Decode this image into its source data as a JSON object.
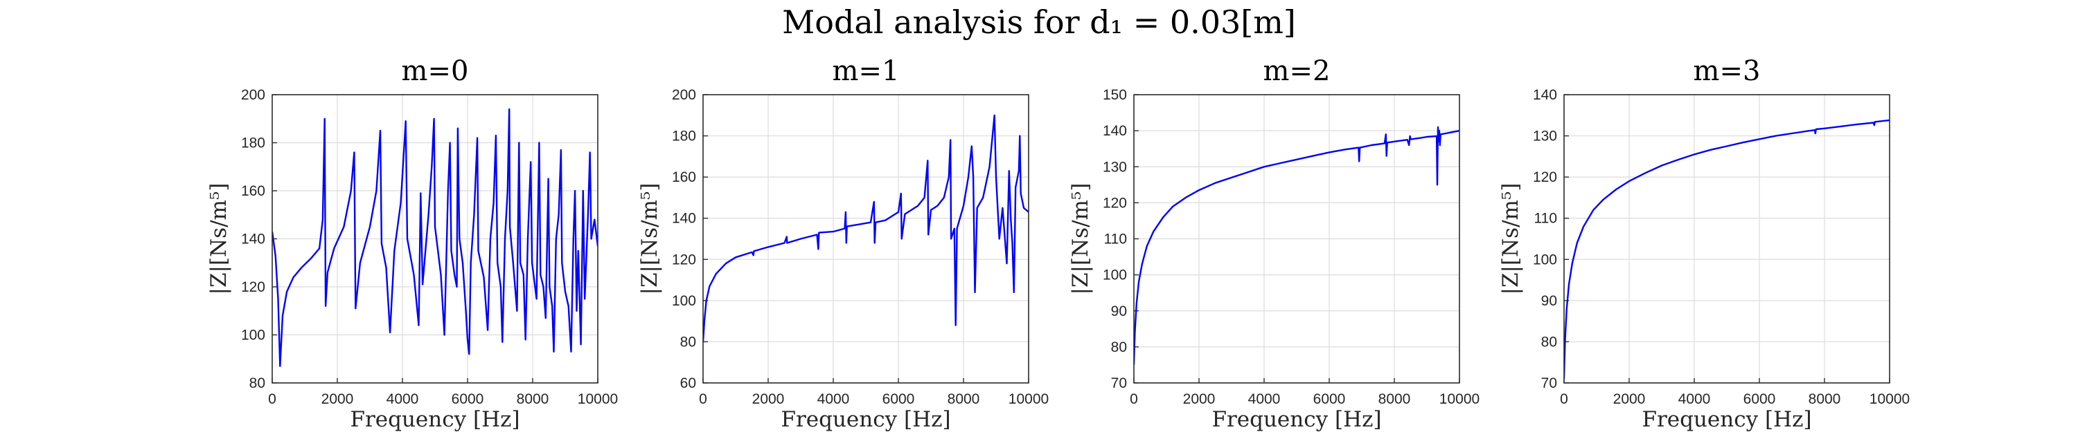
{
  "figure_title": "Modal analysis for d₁ = 0.03[m]",
  "colors": {
    "line": "#0000ff",
    "grid": "#dcdcdc",
    "axes": "#2b2b2b"
  },
  "chart_data": [
    {
      "type": "line",
      "title": "m=0",
      "xlabel": "Frequency [Hz]",
      "ylabel": "|Z|[Ns/m⁵]",
      "xlim": [
        0,
        10000
      ],
      "ylim": [
        80,
        200
      ],
      "xticks": [
        0,
        2000,
        4000,
        6000,
        8000,
        10000
      ],
      "yticks": [
        80,
        100,
        120,
        140,
        160,
        180,
        200
      ],
      "grid": true,
      "series": [
        {
          "values": [
            [
              0,
              143
            ],
            [
              100,
              133
            ],
            [
              180,
              115
            ],
            [
              240,
              87
            ],
            [
              320,
              108
            ],
            [
              450,
              118
            ],
            [
              650,
              124
            ],
            [
              900,
              128
            ],
            [
              1200,
              132
            ],
            [
              1450,
              136
            ],
            [
              1550,
              148
            ],
            [
              1610,
              190
            ],
            [
              1640,
              112
            ],
            [
              1700,
              126
            ],
            [
              1900,
              136
            ],
            [
              2200,
              145
            ],
            [
              2420,
              160
            ],
            [
              2520,
              176
            ],
            [
              2560,
              111
            ],
            [
              2700,
              130
            ],
            [
              3000,
              145
            ],
            [
              3200,
              160
            ],
            [
              3320,
              185
            ],
            [
              3360,
              138
            ],
            [
              3500,
              128
            ],
            [
              3620,
              101
            ],
            [
              3750,
              135
            ],
            [
              3950,
              155
            ],
            [
              4100,
              189
            ],
            [
              4150,
              140
            ],
            [
              4350,
              125
            ],
            [
              4500,
              104
            ],
            [
              4560,
              159
            ],
            [
              4620,
              121
            ],
            [
              4800,
              150
            ],
            [
              4900,
              170
            ],
            [
              4970,
              190
            ],
            [
              5000,
              145
            ],
            [
              5180,
              125
            ],
            [
              5290,
              100
            ],
            [
              5400,
              160
            ],
            [
              5460,
              180
            ],
            [
              5500,
              135
            ],
            [
              5600,
              125
            ],
            [
              5670,
              120
            ],
            [
              5700,
              186
            ],
            [
              5750,
              140
            ],
            [
              5850,
              130
            ],
            [
              5950,
              110
            ],
            [
              6000,
              98
            ],
            [
              6050,
              92
            ],
            [
              6100,
              130
            ],
            [
              6200,
              150
            ],
            [
              6300,
              182
            ],
            [
              6330,
              135
            ],
            [
              6500,
              124
            ],
            [
              6620,
              102
            ],
            [
              6700,
              140
            ],
            [
              6800,
              155
            ],
            [
              6870,
              183
            ],
            [
              6920,
              130
            ],
            [
              7020,
              120
            ],
            [
              7070,
              97
            ],
            [
              7150,
              140
            ],
            [
              7230,
              160
            ],
            [
              7280,
              194
            ],
            [
              7300,
              145
            ],
            [
              7400,
              130
            ],
            [
              7520,
              110
            ],
            [
              7580,
              180
            ],
            [
              7620,
              130
            ],
            [
              7720,
              125
            ],
            [
              7780,
              98
            ],
            [
              7850,
              140
            ],
            [
              7940,
              172
            ],
            [
              7980,
              130
            ],
            [
              8120,
              115
            ],
            [
              8200,
              180
            ],
            [
              8240,
              125
            ],
            [
              8330,
              120
            ],
            [
              8400,
              107
            ],
            [
              8480,
              165
            ],
            [
              8520,
              120
            ],
            [
              8600,
              112
            ],
            [
              8650,
              93
            ],
            [
              8720,
              140
            ],
            [
              8800,
              150
            ],
            [
              8870,
              177
            ],
            [
              8900,
              130
            ],
            [
              9000,
              118
            ],
            [
              9100,
              112
            ],
            [
              9180,
              93
            ],
            [
              9250,
              140
            ],
            [
              9300,
              160
            ],
            [
              9350,
              110
            ],
            [
              9400,
              135
            ],
            [
              9480,
              96
            ],
            [
              9550,
              160
            ],
            [
              9600,
              115
            ],
            [
              9700,
              150
            ],
            [
              9760,
              176
            ],
            [
              9800,
              140
            ],
            [
              9900,
              148
            ],
            [
              10000,
              137
            ]
          ]
        }
      ]
    },
    {
      "type": "line",
      "title": "m=1",
      "xlabel": "Frequency [Hz]",
      "ylabel": "|Z|[Ns/m⁵]",
      "xlim": [
        0,
        10000
      ],
      "ylim": [
        60,
        200
      ],
      "xticks": [
        0,
        2000,
        4000,
        6000,
        8000,
        10000
      ],
      "yticks": [
        60,
        80,
        100,
        120,
        140,
        160,
        180,
        200
      ],
      "grid": true,
      "series": [
        {
          "values": [
            [
              0,
              80
            ],
            [
              40,
              90
            ],
            [
              100,
              100
            ],
            [
              200,
              107
            ],
            [
              400,
              113
            ],
            [
              700,
              118
            ],
            [
              1000,
              121
            ],
            [
              1500,
              123.5
            ],
            [
              1550,
              122
            ],
            [
              1560,
              124
            ],
            [
              2000,
              126
            ],
            [
              2500,
              128
            ],
            [
              2570,
              131
            ],
            [
              2580,
              128
            ],
            [
              3000,
              130
            ],
            [
              3500,
              132
            ],
            [
              3540,
              125
            ],
            [
              3560,
              133
            ],
            [
              4000,
              133.5
            ],
            [
              4350,
              135
            ],
            [
              4380,
              143
            ],
            [
              4400,
              128
            ],
            [
              4420,
              136
            ],
            [
              4800,
              137
            ],
            [
              5150,
              138
            ],
            [
              5250,
              148
            ],
            [
              5270,
              128
            ],
            [
              5300,
              138
            ],
            [
              5600,
              139
            ],
            [
              5800,
              141
            ],
            [
              6000,
              143
            ],
            [
              6080,
              152
            ],
            [
              6100,
              130
            ],
            [
              6200,
              142
            ],
            [
              6400,
              144
            ],
            [
              6600,
              146
            ],
            [
              6800,
              150
            ],
            [
              6900,
              168
            ],
            [
              6920,
              132
            ],
            [
              7000,
              144
            ],
            [
              7200,
              146
            ],
            [
              7400,
              150
            ],
            [
              7550,
              160
            ],
            [
              7600,
              178
            ],
            [
              7620,
              130
            ],
            [
              7720,
              135
            ],
            [
              7760,
              88
            ],
            [
              7800,
              135
            ],
            [
              8000,
              146
            ],
            [
              8150,
              160
            ],
            [
              8250,
              175
            ],
            [
              8300,
              160
            ],
            [
              8350,
              104
            ],
            [
              8420,
              145
            ],
            [
              8600,
              150
            ],
            [
              8800,
              165
            ],
            [
              8950,
              190
            ],
            [
              9000,
              160
            ],
            [
              9100,
              130
            ],
            [
              9200,
              145
            ],
            [
              9330,
              118
            ],
            [
              9400,
              163
            ],
            [
              9450,
              140
            ],
            [
              9500,
              128
            ],
            [
              9550,
              104
            ],
            [
              9600,
              155
            ],
            [
              9700,
              163
            ],
            [
              9730,
              180
            ],
            [
              9760,
              152
            ],
            [
              9850,
              145
            ],
            [
              10000,
              143
            ]
          ]
        }
      ]
    },
    {
      "type": "line",
      "title": "m=2",
      "xlabel": "Frequency [Hz]",
      "ylabel": "|Z|[Ns/m⁵]",
      "xlim": [
        0,
        10000
      ],
      "ylim": [
        70,
        150
      ],
      "xticks": [
        0,
        2000,
        4000,
        6000,
        8000,
        10000
      ],
      "yticks": [
        70,
        80,
        90,
        100,
        110,
        120,
        130,
        140,
        150
      ],
      "grid": true,
      "series": [
        {
          "values": [
            [
              0,
              75
            ],
            [
              30,
              84
            ],
            [
              80,
              92
            ],
            [
              150,
              98
            ],
            [
              250,
              103
            ],
            [
              400,
              108
            ],
            [
              600,
              112
            ],
            [
              900,
              116
            ],
            [
              1200,
              119
            ],
            [
              1600,
              121.5
            ],
            [
              2000,
              123.5
            ],
            [
              2500,
              125.5
            ],
            [
              3000,
              127
            ],
            [
              3500,
              128.5
            ],
            [
              4000,
              130
            ],
            [
              4500,
              131
            ],
            [
              5000,
              132
            ],
            [
              5500,
              133
            ],
            [
              6000,
              134
            ],
            [
              6500,
              134.8
            ],
            [
              6900,
              135.3
            ],
            [
              6920,
              131.5
            ],
            [
              6940,
              135.3
            ],
            [
              7300,
              136
            ],
            [
              7700,
              136.5
            ],
            [
              7740,
              139
            ],
            [
              7760,
              133
            ],
            [
              7780,
              136.7
            ],
            [
              8000,
              137
            ],
            [
              8400,
              137.5
            ],
            [
              8450,
              136
            ],
            [
              8480,
              138.5
            ],
            [
              8500,
              137.6
            ],
            [
              8800,
              138
            ],
            [
              9000,
              138.3
            ],
            [
              9300,
              138.5
            ],
            [
              9320,
              125
            ],
            [
              9340,
              141
            ],
            [
              9360,
              137
            ],
            [
              9380,
              140
            ],
            [
              9400,
              136
            ],
            [
              9420,
              139
            ],
            [
              9600,
              139.3
            ],
            [
              10000,
              140
            ]
          ]
        }
      ]
    },
    {
      "type": "line",
      "title": "m=3",
      "xlabel": "Frequency [Hz]",
      "ylabel": "|Z|[Ns/m⁵]",
      "xlim": [
        0,
        10000
      ],
      "ylim": [
        70,
        140
      ],
      "xticks": [
        0,
        2000,
        4000,
        6000,
        8000,
        10000
      ],
      "yticks": [
        70,
        80,
        90,
        100,
        110,
        120,
        130,
        140
      ],
      "grid": true,
      "series": [
        {
          "values": [
            [
              0,
              71
            ],
            [
              30,
              80
            ],
            [
              80,
              88
            ],
            [
              150,
              94
            ],
            [
              250,
              99
            ],
            [
              400,
              104
            ],
            [
              600,
              108
            ],
            [
              900,
              112
            ],
            [
              1200,
              114.5
            ],
            [
              1600,
              117
            ],
            [
              2000,
              119
            ],
            [
              2500,
              121
            ],
            [
              3000,
              122.8
            ],
            [
              3500,
              124.2
            ],
            [
              4000,
              125.5
            ],
            [
              4500,
              126.6
            ],
            [
              5000,
              127.5
            ],
            [
              5500,
              128.4
            ],
            [
              6000,
              129.2
            ],
            [
              6500,
              130
            ],
            [
              7000,
              130.6
            ],
            [
              7500,
              131.2
            ],
            [
              7700,
              131.4
            ],
            [
              7720,
              130.6
            ],
            [
              7740,
              131.6
            ],
            [
              8000,
              131.8
            ],
            [
              8500,
              132.3
            ],
            [
              9000,
              132.8
            ],
            [
              9500,
              133.2
            ],
            [
              9530,
              132.6
            ],
            [
              9550,
              133.4
            ],
            [
              10000,
              133.8
            ]
          ]
        }
      ]
    }
  ]
}
